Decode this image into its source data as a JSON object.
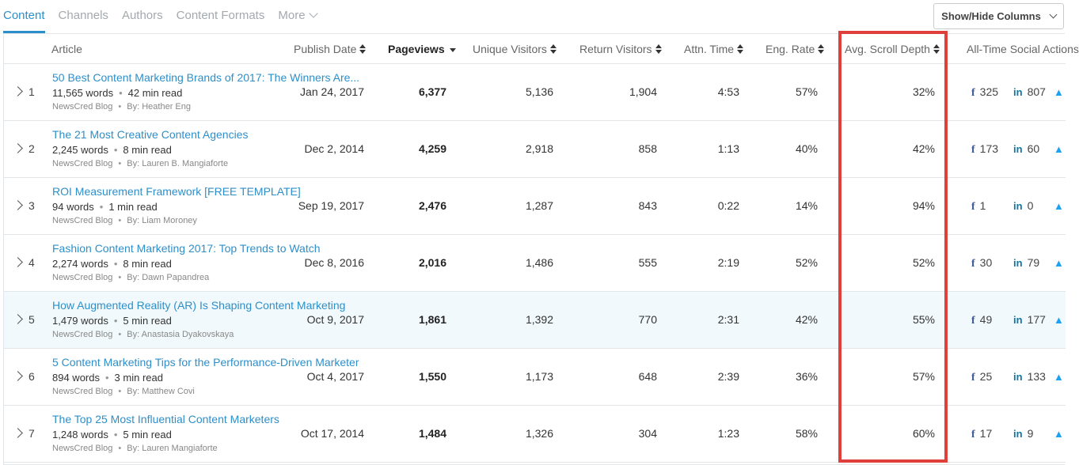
{
  "tabs": [
    {
      "label": "Content",
      "active": true
    },
    {
      "label": "Channels",
      "active": false
    },
    {
      "label": "Authors",
      "active": false
    },
    {
      "label": "Content Formats",
      "active": false
    },
    {
      "label": "More",
      "active": false
    }
  ],
  "show_hide_label": "Show/Hide Columns",
  "columns": {
    "article": "Article",
    "publish_date": "Publish Date",
    "pageviews": "Pageviews",
    "unique_visitors": "Unique Visitors",
    "return_visitors": "Return Visitors",
    "attn_time": "Attn. Time",
    "eng_rate": "Eng. Rate",
    "scroll_depth": "Avg. Scroll Depth",
    "social": "All-Time Social Actions"
  },
  "rows": [
    {
      "rank": "1",
      "title": "50 Best Content Marketing Brands of 2017: The Winners Are...",
      "words": "11,565 words",
      "read": "42 min read",
      "source": "NewsCred Blog",
      "author": "By: Heather Eng",
      "date": "Jan 24, 2017",
      "pageviews": "6,377",
      "unique": "5,136",
      "return": "1,904",
      "attn": "4:53",
      "eng": "57%",
      "scroll": "32%",
      "fb": "325",
      "li": "807",
      "tw": "",
      "highlighted": false
    },
    {
      "rank": "2",
      "title": "The 21 Most Creative Content Agencies",
      "words": "2,245 words",
      "read": "8 min read",
      "source": "NewsCred Blog",
      "author": "By: Lauren B. Mangiaforte",
      "date": "Dec 2, 2014",
      "pageviews": "4,259",
      "unique": "2,918",
      "return": "858",
      "attn": "1:13",
      "eng": "40%",
      "scroll": "42%",
      "fb": "173",
      "li": "60",
      "tw": "",
      "highlighted": false
    },
    {
      "rank": "3",
      "title": "ROI Measurement Framework [FREE TEMPLATE]",
      "words": "94 words",
      "read": "1 min read",
      "source": "NewsCred Blog",
      "author": "By: Liam Moroney",
      "date": "Sep 19, 2017",
      "pageviews": "2,476",
      "unique": "1,287",
      "return": "843",
      "attn": "0:22",
      "eng": "14%",
      "scroll": "94%",
      "fb": "1",
      "li": "0",
      "tw": "",
      "highlighted": false
    },
    {
      "rank": "4",
      "title": "Fashion Content Marketing 2017: Top Trends to Watch",
      "words": "2,274 words",
      "read": "8 min read",
      "source": "NewsCred Blog",
      "author": "By: Dawn Papandrea",
      "date": "Dec 8, 2016",
      "pageviews": "2,016",
      "unique": "1,486",
      "return": "555",
      "attn": "2:19",
      "eng": "52%",
      "scroll": "52%",
      "fb": "30",
      "li": "79",
      "tw": "",
      "highlighted": false
    },
    {
      "rank": "5",
      "title": "How Augmented Reality (AR) Is Shaping Content Marketing",
      "words": "1,479 words",
      "read": "5 min read",
      "source": "NewsCred Blog",
      "author": "By: Anastasia Dyakovskaya",
      "date": "Oct 9, 2017",
      "pageviews": "1,861",
      "unique": "1,392",
      "return": "770",
      "attn": "2:31",
      "eng": "42%",
      "scroll": "55%",
      "fb": "49",
      "li": "177",
      "tw": "",
      "highlighted": true
    },
    {
      "rank": "6",
      "title": "5 Content Marketing Tips for the Performance-Driven Marketer",
      "words": "894 words",
      "read": "3 min read",
      "source": "NewsCred Blog",
      "author": "By: Matthew Covi",
      "date": "Oct 4, 2017",
      "pageviews": "1,550",
      "unique": "1,173",
      "return": "648",
      "attn": "2:39",
      "eng": "36%",
      "scroll": "57%",
      "fb": "25",
      "li": "133",
      "tw": "",
      "highlighted": false
    },
    {
      "rank": "7",
      "title": "The Top 25 Most Influential Content Marketers",
      "words": "1,248 words",
      "read": "5 min read",
      "source": "NewsCred Blog",
      "author": "By: Lauren Mangiaforte",
      "date": "Oct 17, 2014",
      "pageviews": "1,484",
      "unique": "1,326",
      "return": "304",
      "attn": "1:23",
      "eng": "58%",
      "scroll": "60%",
      "fb": "17",
      "li": "9",
      "tw": "",
      "highlighted": false
    }
  ],
  "colors": {
    "accent": "#2d8fc9",
    "highlight_box": "#e0403b",
    "row_highlight": "#f1f9fc"
  }
}
